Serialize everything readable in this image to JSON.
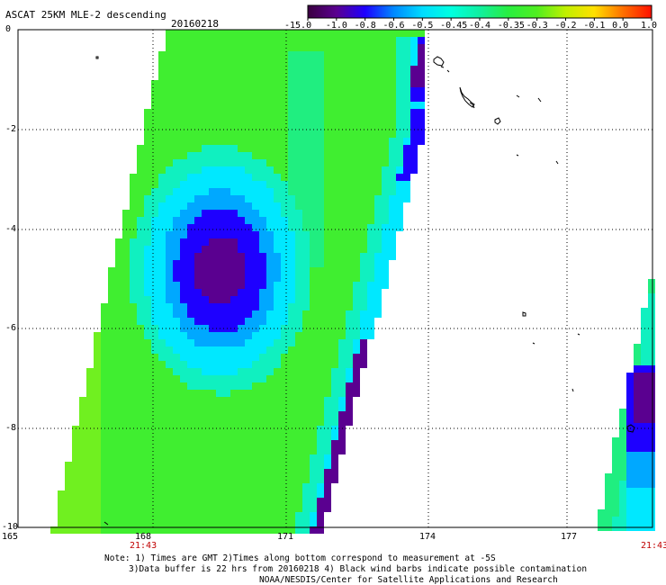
{
  "header": {
    "title": "ASCAT 25KM MLE-2 descending",
    "date": "20160218"
  },
  "colorbar": {
    "labels": [
      "-15.0",
      "-1.0",
      "-0.8",
      "-0.6",
      "-0.5",
      "-0.45",
      "-0.4",
      "-0.35",
      "-0.3",
      "-0.2",
      "-0.1",
      "0.0",
      "1.0"
    ],
    "colors": [
      "#3a0040",
      "#5a0090",
      "#1e00ff",
      "#0088ff",
      "#00dcff",
      "#00ffe0",
      "#10f0a0",
      "#28ee40",
      "#50ee20",
      "#c0f000",
      "#ffe000",
      "#ff7000",
      "#ff1000"
    ]
  },
  "axes": {
    "lat_labels": [
      "0",
      "-2",
      "-4",
      "-6",
      "-8",
      "-10"
    ],
    "lon_labels": [
      "165",
      "168",
      "171",
      "174",
      "177"
    ]
  },
  "times": {
    "left": "21:43",
    "right": "21:43"
  },
  "notes": {
    "line1": "Note: 1) Times are GMT 2)Times along bottom correspond to measurement at -5S",
    "line2": "3)Data buffer is 22 hrs from 20160218 4) Black wind barbs indicate possible contamination",
    "line3": "NOAA/NESDIS/Center for Satellite Applications and Research"
  }
}
